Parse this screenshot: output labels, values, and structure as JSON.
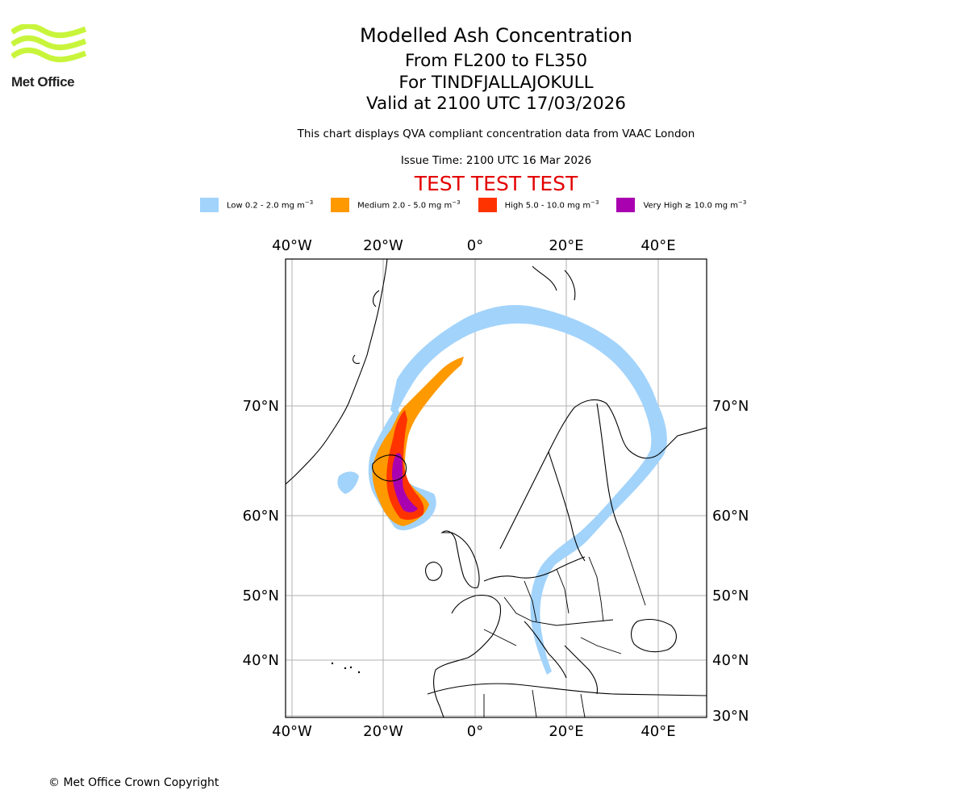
{
  "logo": {
    "text": "Met Office",
    "color": "#c8f53c"
  },
  "header": {
    "title": "Modelled Ash Concentration",
    "flight_levels": "From FL200 to FL350",
    "volcano": "For TINDFJALLAJOKULL",
    "valid_time": "Valid at 2100 UTC 17/03/2026",
    "description": "This chart displays QVA compliant concentration data from VAAC London",
    "issue_time": "Issue Time: 2100 UTC 16 Mar 2026",
    "test_banner": "TEST TEST TEST"
  },
  "legend": [
    {
      "label": "Low 0.2 - 2.0 mg m",
      "sup": "−3",
      "color": "#a2d3fb"
    },
    {
      "label": "Medium 2.0 - 5.0 mg m",
      "sup": "−3",
      "color": "#ff9900"
    },
    {
      "label": "High 5.0 - 10.0 mg m",
      "sup": "−3",
      "color": "#ff3300"
    },
    {
      "label": "Very High  ≥  10.0 mg m",
      "sup": "−3",
      "color": "#a900b0"
    }
  ],
  "map": {
    "lon_labels": [
      "40°W",
      "20°W",
      "0°",
      "20°E",
      "40°E"
    ],
    "lat_labels_left": [
      "70°N",
      "60°N",
      "50°N",
      "40°N"
    ],
    "lat_labels_right": [
      "70°N",
      "60°N",
      "50°N",
      "40°N",
      "30°N"
    ]
  },
  "footer": {
    "copyright": "© Met Office Crown Copyright"
  }
}
